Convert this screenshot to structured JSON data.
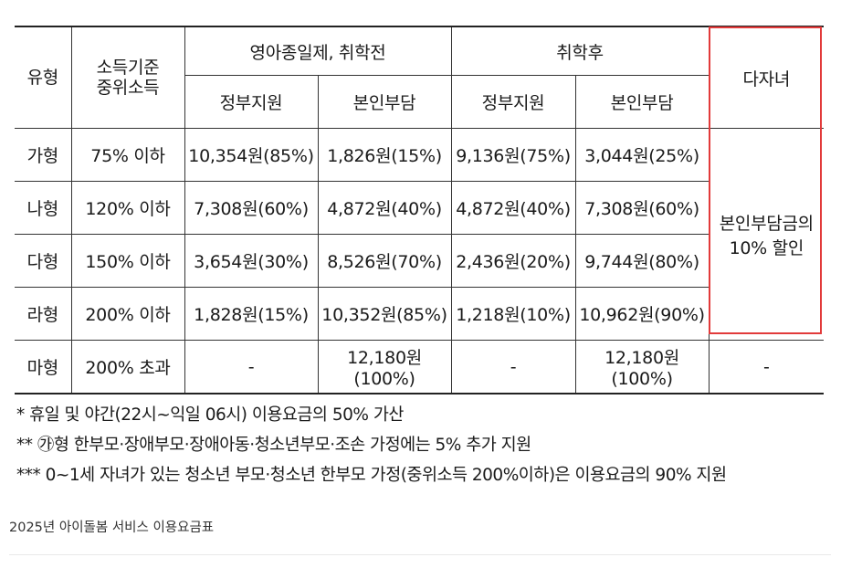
{
  "table": {
    "header": {
      "type": "유형",
      "income_line1": "소득기준",
      "income_line2": "중위소득",
      "group_before": "영아종일제, 취학전",
      "group_after": "취학후",
      "multi_child": "다자녀",
      "sub_gov": "정부지원",
      "sub_self": "본인부담"
    },
    "rows": [
      {
        "type": "가형",
        "income": "75% 이하",
        "before_gov": "10,354원(85%)",
        "before_self": "1,826원(15%)",
        "after_gov": "9,136원(75%)",
        "after_self": "3,044원(25%)"
      },
      {
        "type": "나형",
        "income": "120% 이하",
        "before_gov": "7,308원(60%)",
        "before_self": "4,872원(40%)",
        "after_gov": "4,872원(40%)",
        "after_self": "7,308원(60%)"
      },
      {
        "type": "다형",
        "income": "150% 이하",
        "before_gov": "3,654원(30%)",
        "before_self": "8,526원(70%)",
        "after_gov": "2,436원(20%)",
        "after_self": "9,744원(80%)"
      },
      {
        "type": "라형",
        "income": "200% 이하",
        "before_gov": "1,828원(15%)",
        "before_self": "10,352원(85%)",
        "after_gov": "1,218원(10%)",
        "after_self": "10,962원(90%)"
      },
      {
        "type": "마형",
        "income": "200% 초과",
        "before_gov": "-",
        "before_self": "12,180원(100%)",
        "after_gov": "-",
        "after_self": "12,180원(100%)",
        "multi_child": "-"
      }
    ],
    "discount_line1": "본인부담금의",
    "discount_line2": "10% 할인",
    "highlight_color": "#e23a3a"
  },
  "notes": [
    "*  휴일 및 야간(22시~익일 06시) 이용요금의 50% 가산",
    "**  ㉮형 한부모·장애부모·장애아동·청소년부모·조손 가정에는 5% 추가 지원",
    "***  0~1세 자녀가 있는 청소년 부모·청소년 한부모 가정(중위소득 200%이하)은 이용요금의 90% 지원"
  ],
  "caption": "2025년 아이돌봄 서비스 이용요금표"
}
